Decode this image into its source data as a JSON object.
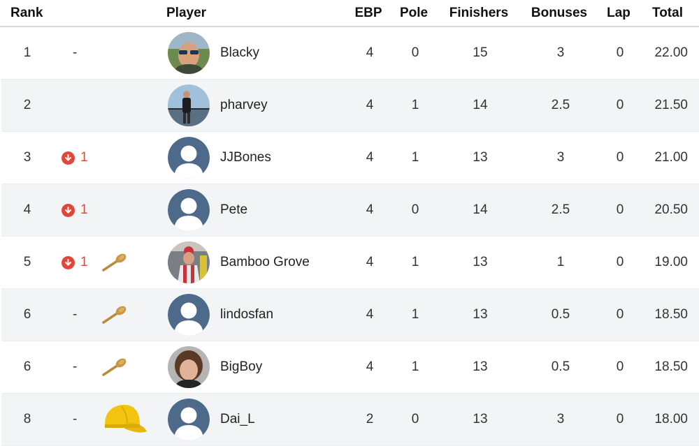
{
  "columns": {
    "rank": "Rank",
    "player": "Player",
    "ebp": "EBP",
    "pole": "Pole",
    "finishers": "Finishers",
    "bonuses": "Bonuses",
    "lap": "Lap",
    "total": "Total"
  },
  "colors": {
    "header_divider": "#d4dce1",
    "row_alt": "#f3f4f6",
    "down_arrow": "#e0473b",
    "default_avatar": "#4e6a8a"
  },
  "rows": [
    {
      "rank": "1",
      "movement": "-",
      "movement_dir": "none",
      "badge": "none",
      "avatar": "photo-sunglasses",
      "player": "Blacky",
      "ebp": "4",
      "pole": "0",
      "finishers": "15",
      "bonuses": "3",
      "lap": "0",
      "total": "22.00"
    },
    {
      "rank": "2",
      "movement": "",
      "movement_dir": "none",
      "badge": "none",
      "avatar": "photo-bridge",
      "player": "pharvey",
      "ebp": "4",
      "pole": "1",
      "finishers": "14",
      "bonuses": "2.5",
      "lap": "0",
      "total": "21.50"
    },
    {
      "rank": "3",
      "movement": "1",
      "movement_dir": "down",
      "badge": "none",
      "avatar": "default-user-icon",
      "player": "JJBones",
      "ebp": "4",
      "pole": "1",
      "finishers": "13",
      "bonuses": "3",
      "lap": "0",
      "total": "21.00"
    },
    {
      "rank": "4",
      "movement": "1",
      "movement_dir": "down",
      "badge": "none",
      "avatar": "default-user-icon",
      "player": "Pete",
      "ebp": "4",
      "pole": "0",
      "finishers": "14",
      "bonuses": "2.5",
      "lap": "0",
      "total": "20.50"
    },
    {
      "rank": "5",
      "movement": "1",
      "movement_dir": "down",
      "badge": "wooden-spoon-icon",
      "avatar": "photo-crowd",
      "player": "Bamboo Grove",
      "ebp": "4",
      "pole": "1",
      "finishers": "13",
      "bonuses": "1",
      "lap": "0",
      "total": "19.00"
    },
    {
      "rank": "6",
      "movement": "-",
      "movement_dir": "none",
      "badge": "wooden-spoon-icon",
      "avatar": "default-user-icon",
      "player": "lindosfan",
      "ebp": "4",
      "pole": "1",
      "finishers": "13",
      "bonuses": "0.5",
      "lap": "0",
      "total": "18.50"
    },
    {
      "rank": "6",
      "movement": "-",
      "movement_dir": "none",
      "badge": "wooden-spoon-icon",
      "avatar": "photo-portrait",
      "player": "BigBoy",
      "ebp": "4",
      "pole": "1",
      "finishers": "13",
      "bonuses": "0.5",
      "lap": "0",
      "total": "18.50"
    },
    {
      "rank": "8",
      "movement": "-",
      "movement_dir": "none",
      "badge": "yellow-cap-icon",
      "avatar": "default-user-icon",
      "player": "Dai_L",
      "ebp": "2",
      "pole": "0",
      "finishers": "13",
      "bonuses": "3",
      "lap": "0",
      "total": "18.00"
    }
  ]
}
